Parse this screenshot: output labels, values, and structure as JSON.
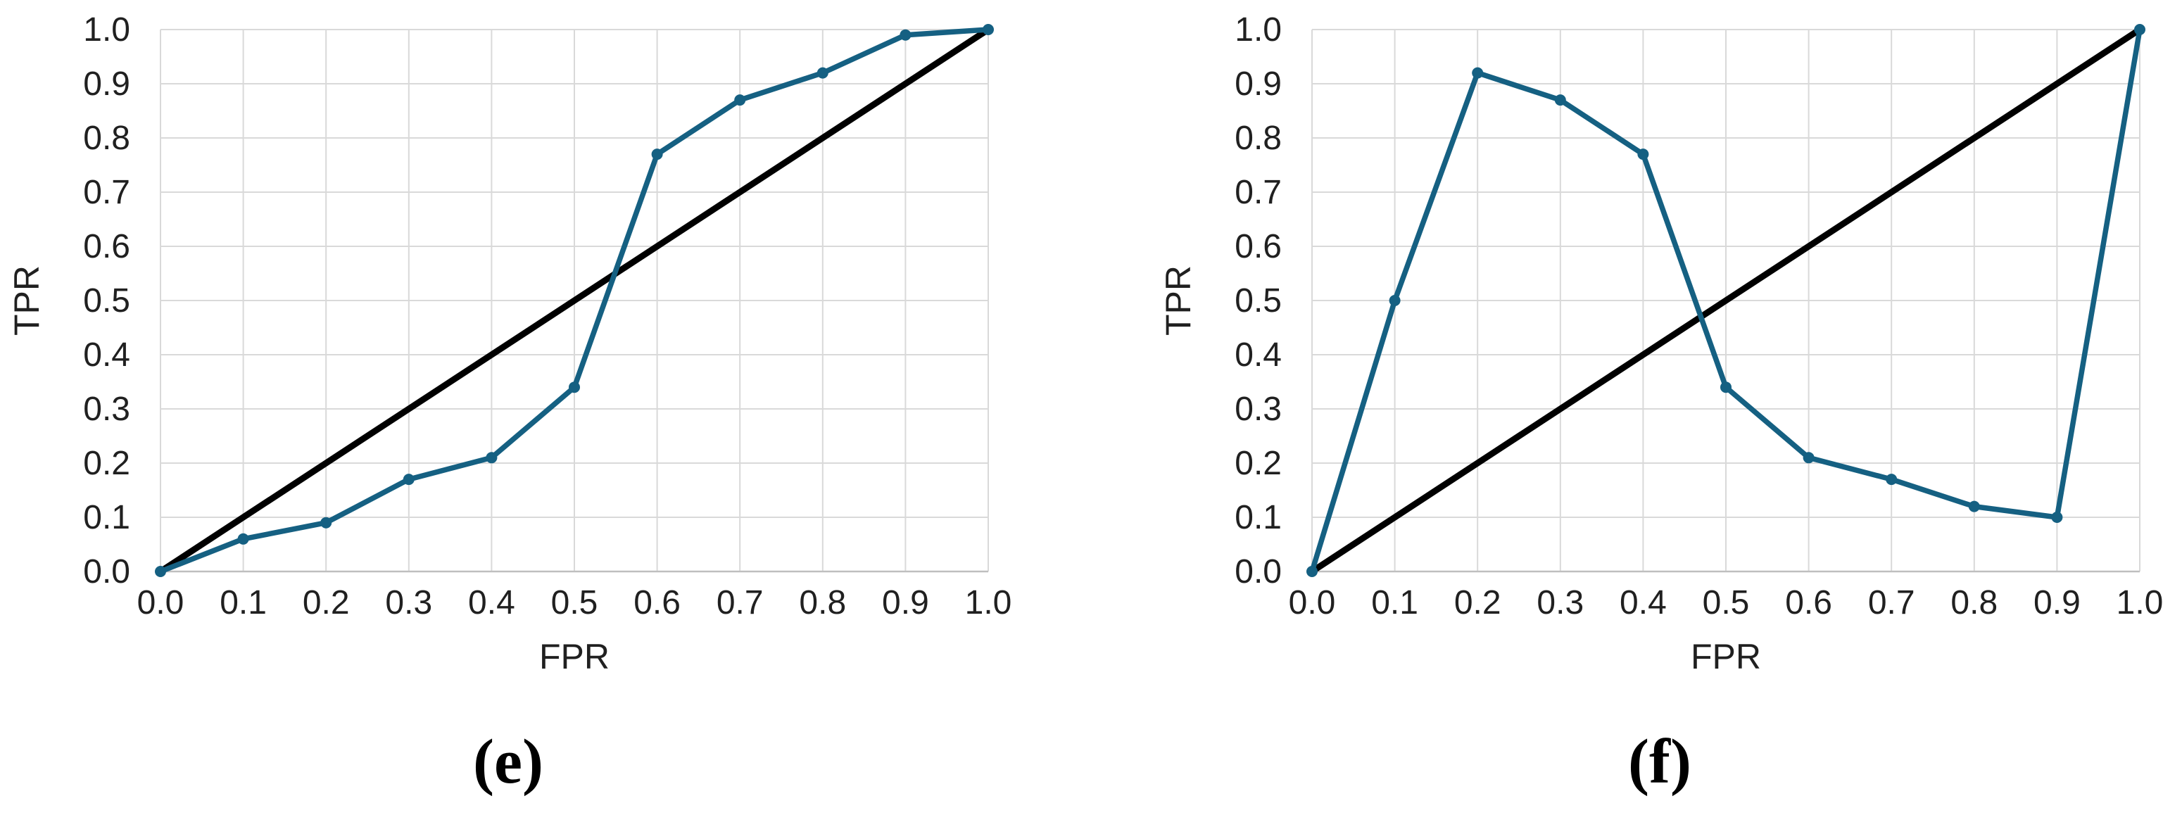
{
  "figure": {
    "background": "#ffffff",
    "panel_labels": [
      "(e)",
      "(f)"
    ]
  },
  "chart_data": [
    {
      "type": "line",
      "panel": "(e)",
      "title": "",
      "xlabel": "FPR",
      "ylabel": "TPR",
      "xlim": [
        0.0,
        1.0
      ],
      "ylim": [
        0.0,
        1.0
      ],
      "x_ticks": [
        "0.0",
        "0.1",
        "0.2",
        "0.3",
        "0.4",
        "0.5",
        "0.6",
        "0.7",
        "0.8",
        "0.9",
        "1.0"
      ],
      "y_ticks": [
        "0.0",
        "0.1",
        "0.2",
        "0.3",
        "0.4",
        "0.5",
        "0.6",
        "0.7",
        "0.8",
        "0.9",
        "1.0"
      ],
      "grid": true,
      "legend": "none",
      "colors": {
        "gridline": "#d9d9d9",
        "axis_line": "#bfbfbf",
        "tick_text": "#202020",
        "curve": "#156082",
        "diagonal": "#000000"
      },
      "series": [
        {
          "name": "ROC curve",
          "color": "#156082",
          "marker": true,
          "stroke_width": 7.5,
          "x": [
            0.0,
            0.1,
            0.2,
            0.3,
            0.4,
            0.5,
            0.6,
            0.7,
            0.8,
            0.9,
            1.0
          ],
          "y": [
            0.0,
            0.06,
            0.09,
            0.17,
            0.21,
            0.34,
            0.77,
            0.87,
            0.92,
            0.99,
            1.0
          ]
        },
        {
          "name": "chance diagonal",
          "color": "#000000",
          "marker": false,
          "stroke_width": 9,
          "x": [
            0.0,
            1.0
          ],
          "y": [
            0.0,
            1.0
          ]
        }
      ]
    },
    {
      "type": "line",
      "panel": "(f)",
      "title": "",
      "xlabel": "FPR",
      "ylabel": "TPR",
      "xlim": [
        0.0,
        1.0
      ],
      "ylim": [
        0.0,
        1.0
      ],
      "x_ticks": [
        "0.0",
        "0.1",
        "0.2",
        "0.3",
        "0.4",
        "0.5",
        "0.6",
        "0.7",
        "0.8",
        "0.9",
        "1.0"
      ],
      "y_ticks": [
        "0.0",
        "0.1",
        "0.2",
        "0.3",
        "0.4",
        "0.5",
        "0.6",
        "0.7",
        "0.8",
        "0.9",
        "1.0"
      ],
      "grid": true,
      "legend": "none",
      "colors": {
        "gridline": "#d9d9d9",
        "axis_line": "#bfbfbf",
        "tick_text": "#202020",
        "curve": "#156082",
        "diagonal": "#000000"
      },
      "series": [
        {
          "name": "ROC curve",
          "color": "#156082",
          "marker": true,
          "stroke_width": 7.5,
          "x": [
            0.0,
            0.1,
            0.2,
            0.3,
            0.4,
            0.5,
            0.6,
            0.7,
            0.8,
            0.9,
            1.0
          ],
          "y": [
            0.0,
            0.5,
            0.92,
            0.87,
            0.77,
            0.34,
            0.21,
            0.17,
            0.12,
            0.1,
            1.0
          ]
        },
        {
          "name": "chance diagonal",
          "color": "#000000",
          "marker": false,
          "stroke_width": 9,
          "x": [
            0.0,
            1.0
          ],
          "y": [
            0.0,
            1.0
          ]
        }
      ]
    }
  ]
}
